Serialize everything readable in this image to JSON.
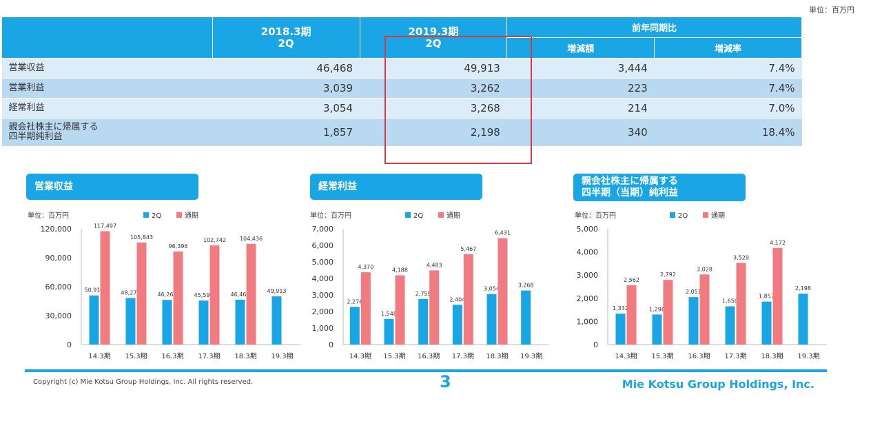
{
  "unit": "単位：百万円",
  "summary": {
    "col_2018": "2018.3期",
    "col_2018_sub": "2Q",
    "col_2019": "2019.3期",
    "col_2019_sub": "2Q",
    "col_yoy": "前年同期比",
    "col_change": "増減額",
    "col_rate": "増減率",
    "rows": [
      {
        "label": "営業収益",
        "v2018": "46,468",
        "v2019": "49,913",
        "change": "3,444",
        "rate": "7.4%"
      },
      {
        "label": "営業利益",
        "v2018": "3,039",
        "v2019": "3,262",
        "change": "223",
        "rate": "7.4%"
      },
      {
        "label": "経常利益",
        "v2018": "3,054",
        "v2019": "3,268",
        "change": "214",
        "rate": "7.0%"
      },
      {
        "label": "親会社株主に帰属する",
        "label2": "四半期純利益",
        "v2018": "1,857",
        "v2019": "2,198",
        "change": "340",
        "rate": "18.4%"
      }
    ]
  },
  "chart_titles": [
    "営業収益",
    "経常利益",
    "親会社株主に帰属する",
    "四半期（当期）純利益"
  ],
  "chart_data": [
    {
      "type": "bar",
      "title": "営業収益",
      "unit": "単位：百万円",
      "categories": [
        "14.3期",
        "15.3期",
        "16.3期",
        "17.3期",
        "18.3期",
        "19.3期"
      ],
      "series": [
        {
          "name": "2Q",
          "color": "#1aa6e4",
          "values": [
            50913,
            48279,
            46263,
            45598,
            46468,
            49913
          ],
          "labels": [
            "50,913",
            "48,279",
            "46,263",
            "45,598",
            "46,468",
            "49,913"
          ]
        },
        {
          "name": "通期",
          "color": "#f07b80",
          "values": [
            117497,
            105843,
            96396,
            102742,
            104436,
            null
          ],
          "labels": [
            "117,497",
            "105,843",
            "96,396",
            "102,742",
            "104,436",
            ""
          ]
        }
      ],
      "ylim": [
        0,
        120000
      ],
      "yticks": [
        0,
        30000,
        60000,
        90000,
        120000
      ],
      "ytick_labels": [
        "0",
        "30,000",
        "60,000",
        "90,000",
        "120,000"
      ]
    },
    {
      "type": "bar",
      "title": "経常利益",
      "unit": "単位：百万円",
      "categories": [
        "14.3期",
        "15.3期",
        "16.3期",
        "17.3期",
        "18.3期",
        "19.3期"
      ],
      "series": [
        {
          "name": "2Q",
          "color": "#1aa6e4",
          "values": [
            2276,
            1548,
            2759,
            2404,
            3054,
            3268
          ],
          "labels": [
            "2,276",
            "1,548",
            "2,759",
            "2,404",
            "3,054",
            "3,268"
          ]
        },
        {
          "name": "通期",
          "color": "#f07b80",
          "values": [
            4370,
            4188,
            4483,
            5467,
            6431,
            null
          ],
          "labels": [
            "4,370",
            "4,188",
            "4,483",
            "5,467",
            "6,431",
            ""
          ]
        }
      ],
      "ylim": [
        0,
        7000
      ],
      "yticks": [
        0,
        1000,
        2000,
        3000,
        4000,
        5000,
        6000,
        7000
      ],
      "ytick_labels": [
        "0",
        "1,000",
        "2,000",
        "3,000",
        "4,000",
        "5,000",
        "6,000",
        "7,000"
      ]
    },
    {
      "type": "bar",
      "title": "親会社株主に帰属する 四半期（当期）純利益",
      "unit": "単位：百万円",
      "categories": [
        "14.3期",
        "15.3期",
        "16.3期",
        "17.3期",
        "18.3期",
        "19.3期"
      ],
      "series": [
        {
          "name": "2Q",
          "color": "#1aa6e4",
          "values": [
            1332,
            1298,
            2051,
            1650,
            1857,
            2198
          ],
          "labels": [
            "1,332",
            "1,298",
            "2,051",
            "1,650",
            "1,857",
            "2,198"
          ]
        },
        {
          "name": "通期",
          "color": "#f07b80",
          "values": [
            2562,
            2792,
            3028,
            3529,
            4172,
            null
          ],
          "labels": [
            "2,562",
            "2,792",
            "3,028",
            "3,529",
            "4,172",
            ""
          ]
        }
      ],
      "ylim": [
        0,
        5000
      ],
      "yticks": [
        0,
        1000,
        2000,
        3000,
        4000,
        5000
      ],
      "ytick_labels": [
        "0",
        "1,000",
        "2,000",
        "3,000",
        "4,000",
        "5,000"
      ]
    }
  ],
  "footer": {
    "copyright": "Copyright (c) Mie Kotsu Group Holdings, Inc. All rights reserved.",
    "page": "3",
    "company": "Mie Kotsu Group Holdings, Inc."
  }
}
